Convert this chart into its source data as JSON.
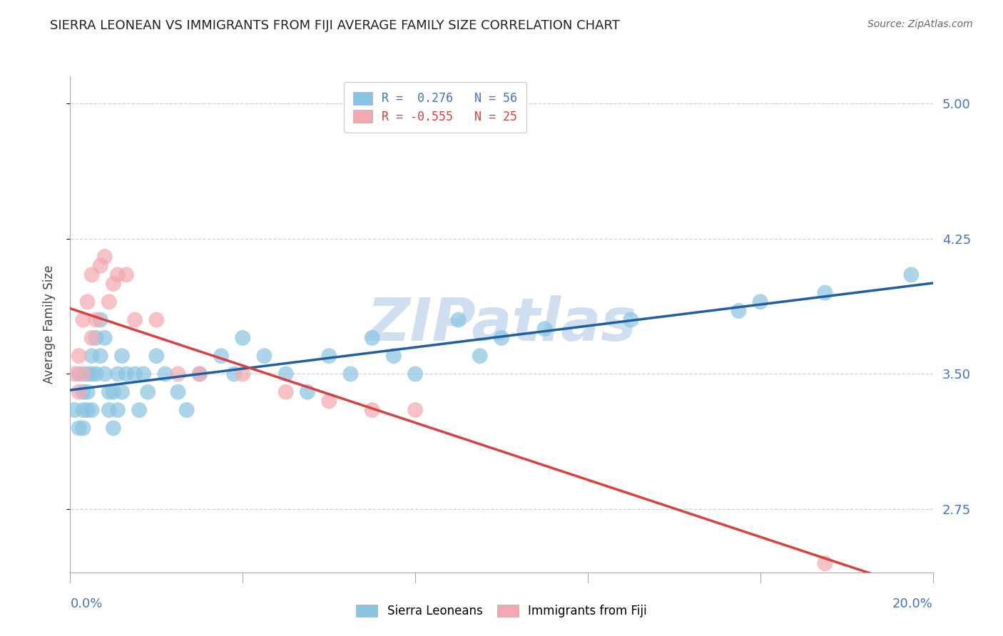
{
  "title": "SIERRA LEONEAN VS IMMIGRANTS FROM FIJI AVERAGE FAMILY SIZE CORRELATION CHART",
  "source": "Source: ZipAtlas.com",
  "ylabel": "Average Family Size",
  "xlim": [
    0.0,
    0.2
  ],
  "ylim": [
    2.4,
    5.15
  ],
  "yticks": [
    2.75,
    3.5,
    4.25,
    5.0
  ],
  "xticks": [
    0.0,
    0.04,
    0.08,
    0.12,
    0.16,
    0.2
  ],
  "legend_r1": "R =  0.276   N = 56",
  "legend_r2": "R = -0.555   N = 25",
  "blue_scatter_color": "#89c4e1",
  "pink_scatter_color": "#f4a8b0",
  "blue_line_color": "#2060a0",
  "pink_line_color": "#d94040",
  "blue_dash_color": "#a0c0d8",
  "watermark_color": "#d0dff0",
  "right_tick_color": "#4472c4",
  "bottom_tick_color": "#4472c4",
  "grid_color": "#cccccc",
  "spine_color": "#aaaaaa",
  "title_fontsize": 13,
  "source_fontsize": 10,
  "ylabel_fontsize": 12,
  "tick_fontsize": 13,
  "legend_fontsize": 12,
  "watermark_fontsize": 60,
  "sierra_x": [
    0.001,
    0.002,
    0.002,
    0.003,
    0.003,
    0.003,
    0.004,
    0.004,
    0.004,
    0.005,
    0.005,
    0.005,
    0.006,
    0.006,
    0.007,
    0.007,
    0.008,
    0.008,
    0.009,
    0.009,
    0.01,
    0.01,
    0.011,
    0.011,
    0.012,
    0.012,
    0.013,
    0.015,
    0.016,
    0.017,
    0.018,
    0.02,
    0.022,
    0.025,
    0.027,
    0.03,
    0.035,
    0.038,
    0.04,
    0.045,
    0.05,
    0.055,
    0.06,
    0.065,
    0.07,
    0.075,
    0.08,
    0.09,
    0.095,
    0.1,
    0.11,
    0.13,
    0.155,
    0.16,
    0.175,
    0.195
  ],
  "sierra_y": [
    3.3,
    3.2,
    3.5,
    3.4,
    3.3,
    3.2,
    3.4,
    3.5,
    3.3,
    3.6,
    3.5,
    3.3,
    3.7,
    3.5,
    3.6,
    3.8,
    3.7,
    3.5,
    3.4,
    3.3,
    3.2,
    3.4,
    3.3,
    3.5,
    3.6,
    3.4,
    3.5,
    3.5,
    3.3,
    3.5,
    3.4,
    3.6,
    3.5,
    3.4,
    3.3,
    3.5,
    3.6,
    3.5,
    3.7,
    3.6,
    3.5,
    3.4,
    3.6,
    3.5,
    3.7,
    3.6,
    3.5,
    3.8,
    3.6,
    3.7,
    3.75,
    3.8,
    3.85,
    3.9,
    3.95,
    4.05
  ],
  "fiji_x": [
    0.001,
    0.002,
    0.002,
    0.003,
    0.003,
    0.004,
    0.005,
    0.005,
    0.006,
    0.007,
    0.008,
    0.009,
    0.01,
    0.011,
    0.013,
    0.015,
    0.02,
    0.025,
    0.03,
    0.04,
    0.05,
    0.06,
    0.07,
    0.08,
    0.175
  ],
  "fiji_y": [
    3.5,
    3.4,
    3.6,
    3.8,
    3.5,
    3.9,
    4.05,
    3.7,
    3.8,
    4.1,
    4.15,
    3.9,
    4.0,
    4.05,
    4.05,
    3.8,
    3.8,
    3.5,
    3.5,
    3.5,
    3.4,
    3.35,
    3.3,
    3.3,
    2.45
  ]
}
